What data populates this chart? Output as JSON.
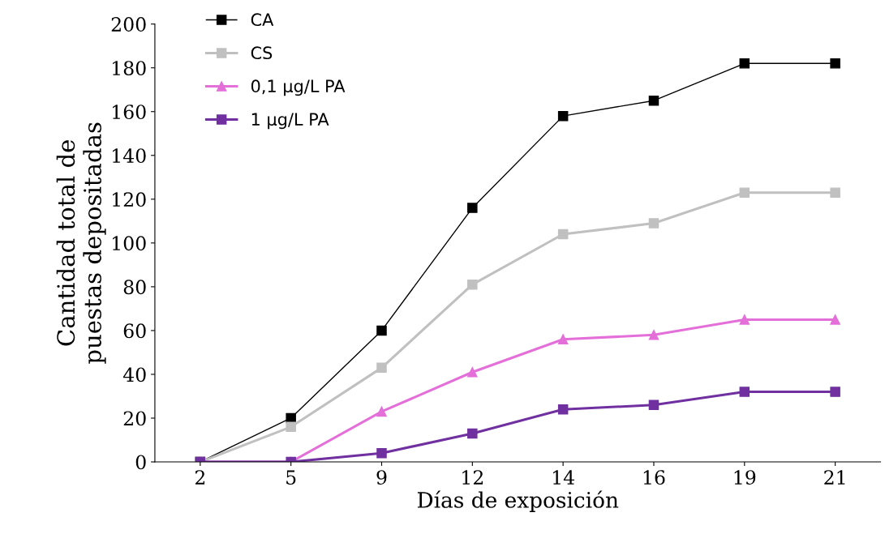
{
  "chart_data": {
    "type": "line",
    "xlabel": "Días de exposición",
    "ylabel": "Cantidad total de\npuestas depositadas",
    "categories": [
      "2",
      "5",
      "9",
      "12",
      "14",
      "16",
      "19",
      "21"
    ],
    "series": [
      {
        "name": "CA",
        "color": "#000000",
        "marker": "square",
        "values": [
          0,
          20,
          60,
          116,
          158,
          165,
          182,
          182
        ]
      },
      {
        "name": "CS",
        "color": "#c0c0c0",
        "marker": "square",
        "values": [
          0,
          16,
          43,
          81,
          104,
          109,
          123,
          123
        ]
      },
      {
        "name": "0,1 µg/L PA",
        "color": "#e46fd9",
        "marker": "triangle",
        "values": [
          0,
          0,
          23,
          41,
          56,
          58,
          65,
          65
        ]
      },
      {
        "name": "1 µg/L PA",
        "color": "#7030a0",
        "marker": "square",
        "values": [
          0,
          0,
          4,
          13,
          24,
          26,
          32,
          32
        ]
      }
    ],
    "ylim": [
      0,
      200
    ],
    "yticks": [
      0,
      20,
      40,
      60,
      80,
      100,
      120,
      140,
      160,
      180,
      200
    ],
    "grid": false,
    "legend": "top left",
    "line_style": "solid"
  }
}
